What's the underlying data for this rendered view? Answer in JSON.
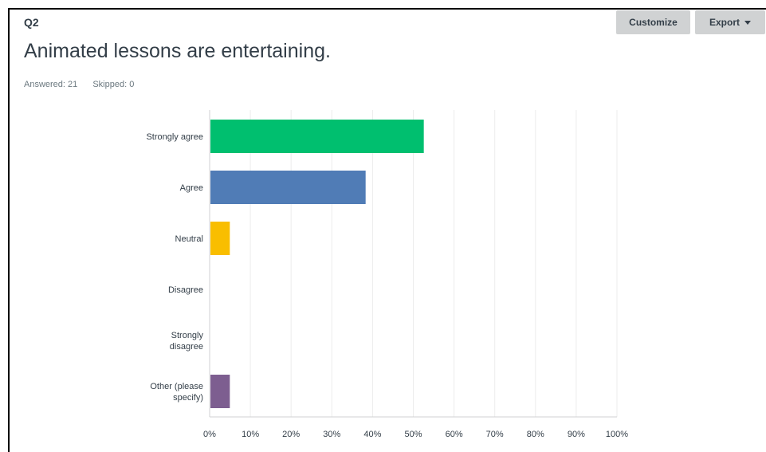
{
  "header": {
    "question_number": "Q2",
    "title": "Animated lessons are entertaining.",
    "answered": "Answered: 21",
    "skipped": "Skipped: 0"
  },
  "toolbar": {
    "customize_label": "Customize",
    "export_label": "Export"
  },
  "chart_data": {
    "type": "bar",
    "orientation": "horizontal",
    "categories": [
      [
        "Strongly agree"
      ],
      [
        "Agree"
      ],
      [
        "Neutral"
      ],
      [
        "Disagree"
      ],
      [
        "Strongly",
        "disagree"
      ],
      [
        "Other (please",
        "specify)"
      ]
    ],
    "values": [
      52.38,
      38.1,
      4.76,
      0,
      0,
      4.76
    ],
    "colors": [
      "#00bf6f",
      "#507cb6",
      "#f9be00",
      "#6bc8cd",
      "#ff8b4f",
      "#7d5e90"
    ],
    "xlim": [
      0,
      100
    ],
    "ticks": [
      "0%",
      "10%",
      "20%",
      "30%",
      "40%",
      "50%",
      "60%",
      "70%",
      "80%",
      "90%",
      "100%"
    ],
    "grid": true,
    "legend": "none",
    "title": "",
    "xlabel": "",
    "ylabel": ""
  }
}
